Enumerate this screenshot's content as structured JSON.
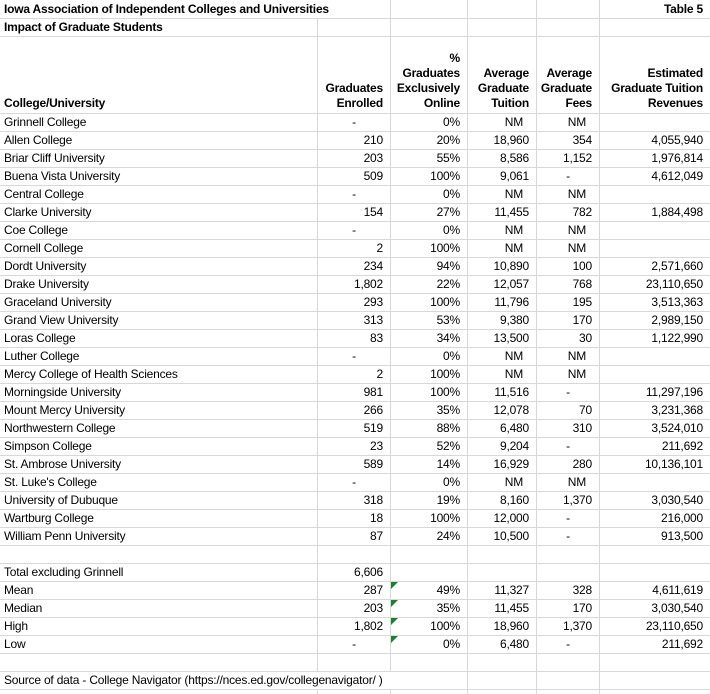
{
  "sheet": {
    "title": "Iowa Association of Independent Colleges and Universities",
    "table_label": "Table 5",
    "subtitle": "Impact of Graduate Students",
    "source_note": "Source of data - College Navigator (https://nces.ed.gov/collegenavigator/ )"
  },
  "columns": [
    "College/University",
    "Graduates\nEnrolled",
    "%\nGraduates\nExclusively\nOnline",
    "Average\nGraduate\nTuition",
    "Average\nGraduate\nFees",
    "Estimated\nGraduate Tuition\nRevenues"
  ],
  "rows": [
    [
      "Grinnell College",
      "-",
      "0%",
      "NM",
      "NM",
      ""
    ],
    [
      "Allen College",
      "210",
      "20%",
      "18,960",
      "354",
      "4,055,940"
    ],
    [
      "Briar Cliff University",
      "203",
      "55%",
      "8,586",
      "1,152",
      "1,976,814"
    ],
    [
      "Buena Vista University",
      "509",
      "100%",
      "9,061",
      "-",
      "4,612,049"
    ],
    [
      "Central College",
      "-",
      "0%",
      "NM",
      "NM",
      ""
    ],
    [
      "Clarke University",
      "154",
      "27%",
      "11,455",
      "782",
      "1,884,498"
    ],
    [
      "Coe College",
      "-",
      "0%",
      "NM",
      "NM",
      ""
    ],
    [
      "Cornell College",
      "2",
      "100%",
      "NM",
      "NM",
      ""
    ],
    [
      "Dordt University",
      "234",
      "94%",
      "10,890",
      "100",
      "2,571,660"
    ],
    [
      "Drake University",
      "1,802",
      "22%",
      "12,057",
      "768",
      "23,110,650"
    ],
    [
      "Graceland University",
      "293",
      "100%",
      "11,796",
      "195",
      "3,513,363"
    ],
    [
      "Grand View University",
      "313",
      "53%",
      "9,380",
      "170",
      "2,989,150"
    ],
    [
      "Loras College",
      "83",
      "34%",
      "13,500",
      "30",
      "1,122,990"
    ],
    [
      "Luther College",
      "-",
      "0%",
      "NM",
      "NM",
      ""
    ],
    [
      "Mercy College of Health Sciences",
      "2",
      "100%",
      "NM",
      "NM",
      ""
    ],
    [
      "Morningside University",
      "981",
      "100%",
      "11,516",
      "-",
      "11,297,196"
    ],
    [
      "Mount Mercy University",
      "266",
      "35%",
      "12,078",
      "70",
      "3,231,368"
    ],
    [
      "Northwestern College",
      "519",
      "88%",
      "6,480",
      "310",
      "3,524,010"
    ],
    [
      "Simpson College",
      "23",
      "52%",
      "9,204",
      "-",
      "211,692"
    ],
    [
      "St. Ambrose University",
      "589",
      "14%",
      "16,929",
      "280",
      "10,136,101"
    ],
    [
      "St. Luke's College",
      "-",
      "0%",
      "NM",
      "NM",
      ""
    ],
    [
      "University of Dubuque",
      "318",
      "19%",
      "8,160",
      "1,370",
      "3,030,540"
    ],
    [
      "Wartburg College",
      "18",
      "100%",
      "12,000",
      "-",
      "216,000"
    ],
    [
      "William Penn University",
      "87",
      "24%",
      "10,500",
      "-",
      "913,500"
    ]
  ],
  "summary": {
    "total_label": "Total excluding Grinnell",
    "total_enrolled": "6,606",
    "stats": [
      {
        "label": "Mean",
        "values": [
          "287",
          "49%",
          "11,327",
          "328",
          "4,611,619"
        ],
        "error_indicator": true
      },
      {
        "label": "Median",
        "values": [
          "203",
          "35%",
          "11,455",
          "170",
          "3,030,540"
        ],
        "error_indicator": true
      },
      {
        "label": "High",
        "values": [
          "1,802",
          "100%",
          "18,960",
          "1,370",
          "23,110,650"
        ],
        "error_indicator": true
      },
      {
        "label": "Low",
        "values": [
          "-",
          "0%",
          "6,480",
          "-",
          "211,692"
        ],
        "error_indicator": true
      }
    ]
  },
  "colors": {
    "gridline": "#d8d8d8",
    "error_indicator": "#1e7e34",
    "text": "#000000",
    "background": "#ffffff"
  }
}
